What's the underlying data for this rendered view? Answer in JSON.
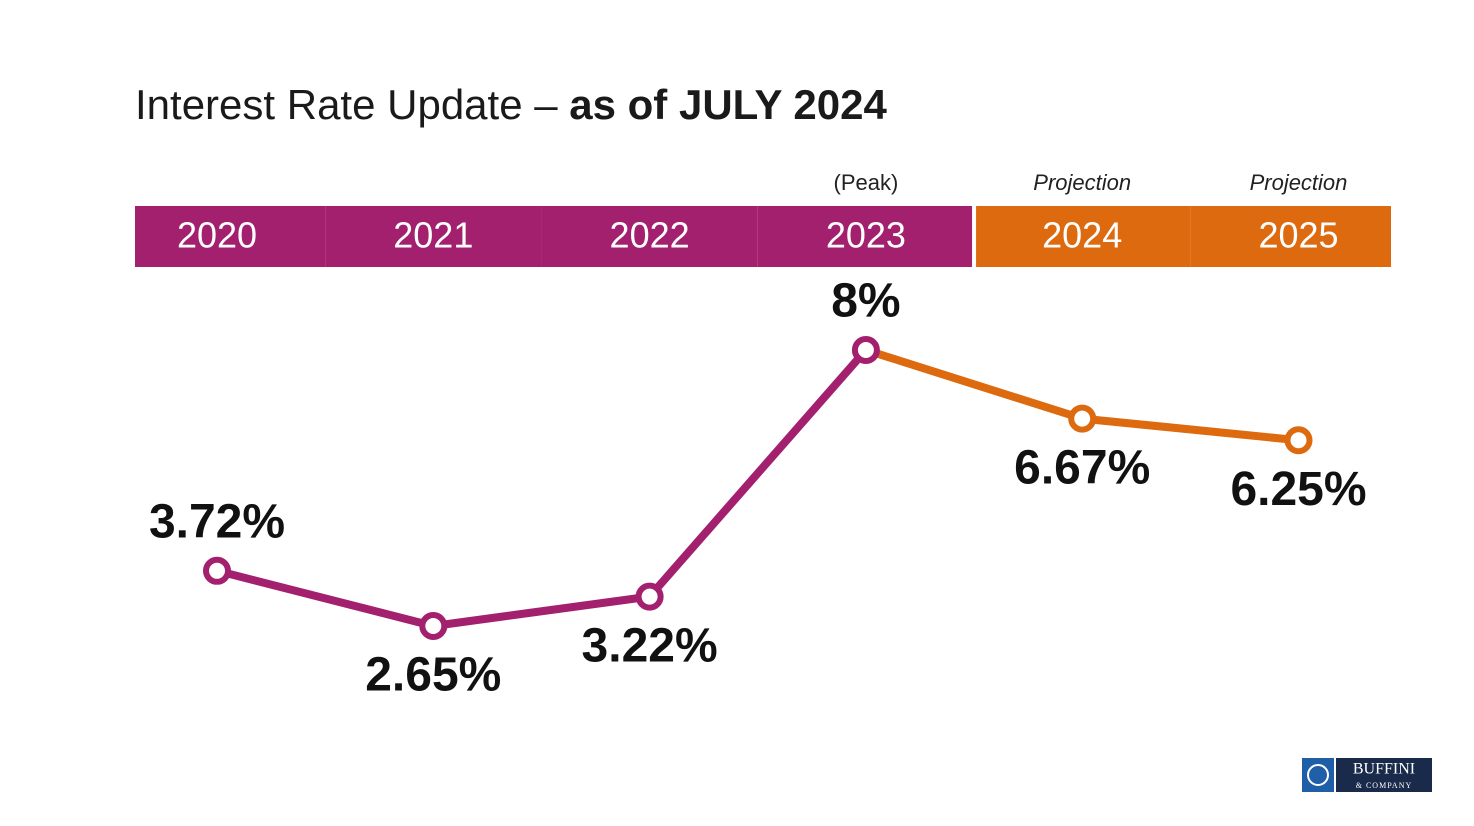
{
  "chart_data": {
    "type": "line",
    "title": "Interest Rate Update –",
    "title_emphasis": "as of JULY 2024",
    "categories": [
      "2020",
      "2021",
      "2022",
      "2023",
      "2024",
      "2025"
    ],
    "category_notes": [
      null,
      null,
      null,
      "(Peak)",
      "Projection",
      "Projection"
    ],
    "values": [
      3.72,
      2.65,
      3.22,
      8,
      6.67,
      6.25
    ],
    "value_labels": [
      "3.72%",
      "2.65%",
      "3.22%",
      "8%",
      "6.67%",
      "6.25%"
    ],
    "colors": [
      "#a3206f",
      "#a3206f",
      "#a3206f",
      "#a3206f",
      "#dd6a0e",
      "#dd6a0e"
    ]
  },
  "logo": {
    "name": "BUFFINI",
    "subtitle": "& COMPANY"
  }
}
